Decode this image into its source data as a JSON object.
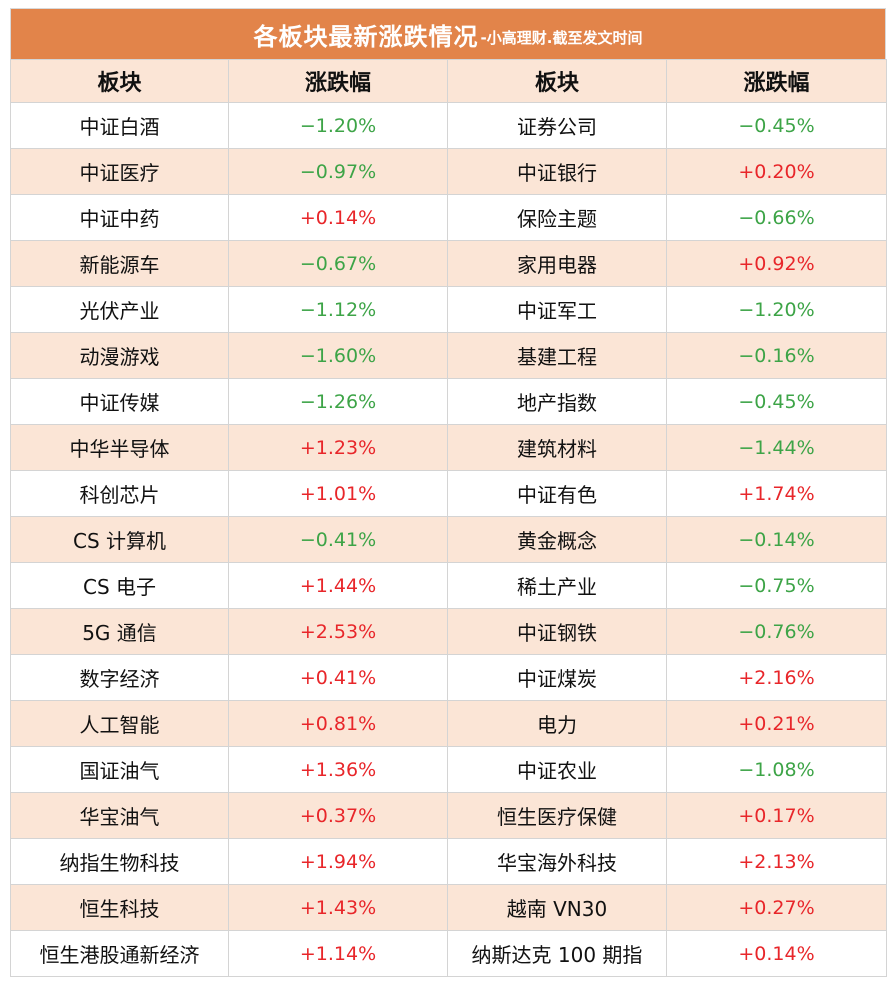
{
  "title": {
    "main": "各板块最新涨跌情况",
    "sub": "-小高理财.截至发文时间"
  },
  "headers": [
    "板块",
    "涨跌幅",
    "板块",
    "涨跌幅"
  ],
  "colors": {
    "header_bg": "#e2844a",
    "alt_row": "#fbe5d6",
    "up": "#e8262a",
    "down": "#3da447"
  },
  "rows": [
    {
      "left_name": "中证白酒",
      "left_change": "−1.20%",
      "right_name": "证券公司",
      "right_change": "−0.45%"
    },
    {
      "left_name": "中证医疗",
      "left_change": "−0.97%",
      "right_name": "中证银行",
      "right_change": "+0.20%"
    },
    {
      "left_name": "中证中药",
      "left_change": "+0.14%",
      "right_name": "保险主题",
      "right_change": "−0.66%"
    },
    {
      "left_name": "新能源车",
      "left_change": "−0.67%",
      "right_name": "家用电器",
      "right_change": "+0.92%"
    },
    {
      "left_name": "光伏产业",
      "left_change": "−1.12%",
      "right_name": "中证军工",
      "right_change": "−1.20%"
    },
    {
      "left_name": "动漫游戏",
      "left_change": "−1.60%",
      "right_name": "基建工程",
      "right_change": "−0.16%"
    },
    {
      "left_name": "中证传媒",
      "left_change": "−1.26%",
      "right_name": "地产指数",
      "right_change": "−0.45%"
    },
    {
      "left_name": "中华半导体",
      "left_change": "+1.23%",
      "right_name": "建筑材料",
      "right_change": "−1.44%"
    },
    {
      "left_name": "科创芯片",
      "left_change": "+1.01%",
      "right_name": "中证有色",
      "right_change": "+1.74%"
    },
    {
      "left_name": "CS 计算机",
      "left_change": "−0.41%",
      "right_name": "黄金概念",
      "right_change": "−0.14%"
    },
    {
      "left_name": "CS 电子",
      "left_change": "+1.44%",
      "right_name": "稀土产业",
      "right_change": "−0.75%"
    },
    {
      "left_name": "5G 通信",
      "left_change": "+2.53%",
      "right_name": "中证钢铁",
      "right_change": "−0.76%"
    },
    {
      "left_name": "数字经济",
      "left_change": "+0.41%",
      "right_name": "中证煤炭",
      "right_change": "+2.16%"
    },
    {
      "left_name": "人工智能",
      "left_change": "+0.81%",
      "right_name": "电力",
      "right_change": "+0.21%"
    },
    {
      "left_name": "国证油气",
      "left_change": "+1.36%",
      "right_name": "中证农业",
      "right_change": "−1.08%"
    },
    {
      "left_name": "华宝油气",
      "left_change": "+0.37%",
      "right_name": "恒生医疗保健",
      "right_change": "+0.17%"
    },
    {
      "left_name": "纳指生物科技",
      "left_change": "+1.94%",
      "right_name": "华宝海外科技",
      "right_change": "+2.13%"
    },
    {
      "left_name": "恒生科技",
      "left_change": "+1.43%",
      "right_name": "越南 VN30",
      "right_change": "+0.27%"
    },
    {
      "left_name": "恒生港股通新经济",
      "left_change": "+1.14%",
      "right_name": "纳斯达克 100 期指",
      "right_change": "+0.14%"
    }
  ]
}
